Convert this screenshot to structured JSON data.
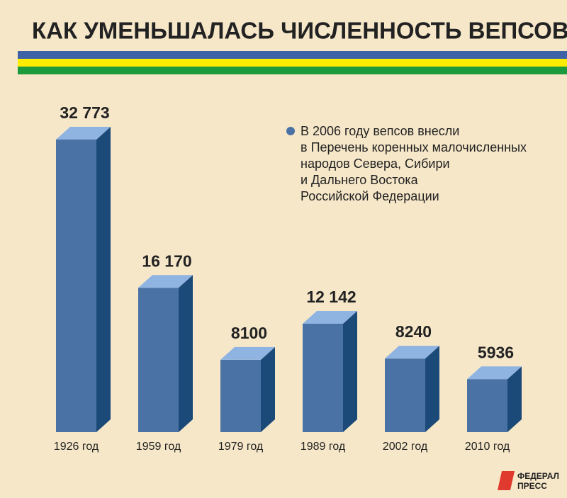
{
  "chart_data": {
    "type": "bar3d",
    "title": "КАК УМЕНЬШАЛАСЬ ЧИСЛЕННОСТЬ ВЕПСОВ",
    "categories": [
      "1926 год",
      "1959 год",
      "1979 год",
      "1989 год",
      "2002 год",
      "2010 год"
    ],
    "values": [
      32773,
      16170,
      8100,
      12142,
      8240,
      5936
    ],
    "value_labels": [
      "32 773",
      "16 170",
      "8100",
      "12 142",
      "8240",
      "5936"
    ],
    "color": "#4a72a4",
    "annotation": [
      "В 2006 году вепсов внесли",
      "в Перечень коренных малочисленных",
      "народов Севера, Сибири",
      "и Дальнего Востока",
      "Российской Федерации"
    ]
  },
  "logo": [
    "ФЕДЕРАЛ",
    "ПРЕСС"
  ]
}
